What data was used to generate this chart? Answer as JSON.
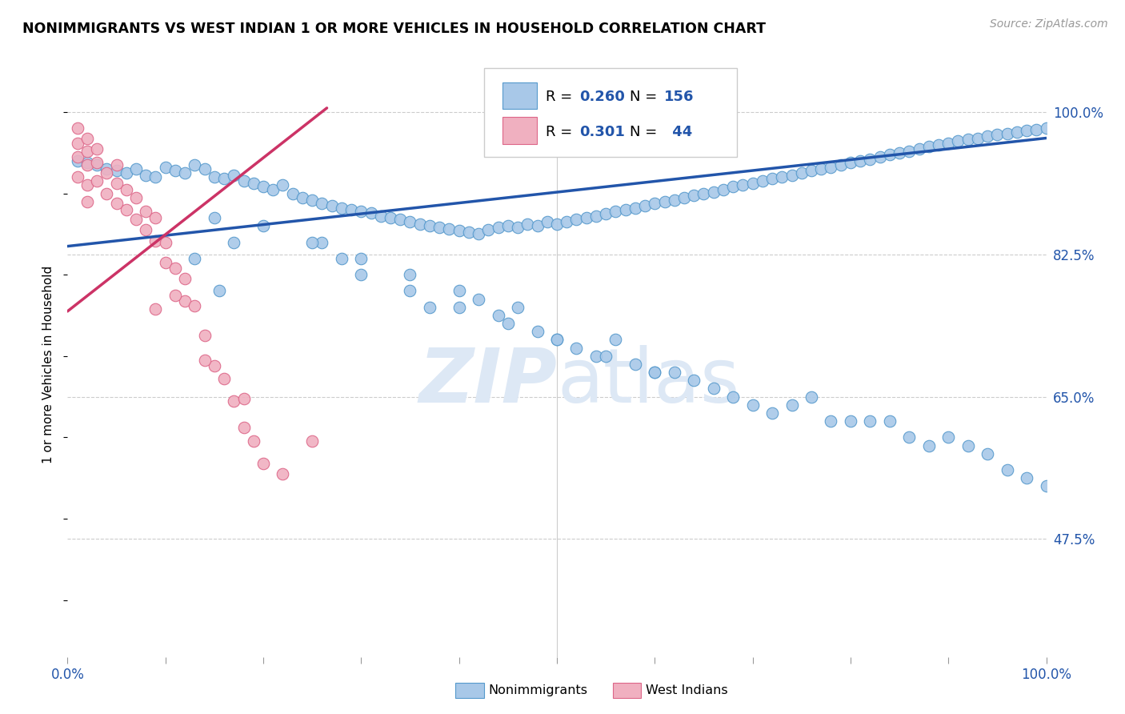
{
  "title": "NONIMMIGRANTS VS WEST INDIAN 1 OR MORE VEHICLES IN HOUSEHOLD CORRELATION CHART",
  "source": "Source: ZipAtlas.com",
  "ylabel": "1 or more Vehicles in Household",
  "ytick_labels": [
    "100.0%",
    "82.5%",
    "65.0%",
    "47.5%"
  ],
  "ytick_values": [
    1.0,
    0.825,
    0.65,
    0.475
  ],
  "xlim": [
    0.0,
    1.0
  ],
  "ylim": [
    0.33,
    1.05
  ],
  "legend_label1": "Nonimmigrants",
  "legend_label2": "West Indians",
  "blue_color": "#a8c8e8",
  "blue_edge_color": "#5599cc",
  "blue_line_color": "#2255aa",
  "pink_color": "#f0b0c0",
  "pink_edge_color": "#dd6688",
  "pink_line_color": "#cc3366",
  "watermark_color": "#dde8f5",
  "blue_line_x": [
    0.0,
    1.0
  ],
  "blue_line_y": [
    0.835,
    0.968
  ],
  "pink_line_x": [
    0.0,
    0.265
  ],
  "pink_line_y": [
    0.755,
    1.005
  ],
  "blue_scatter_x": [
    0.01,
    0.02,
    0.03,
    0.04,
    0.05,
    0.06,
    0.07,
    0.08,
    0.09,
    0.1,
    0.11,
    0.12,
    0.13,
    0.14,
    0.15,
    0.16,
    0.17,
    0.18,
    0.19,
    0.2,
    0.21,
    0.22,
    0.23,
    0.24,
    0.25,
    0.26,
    0.27,
    0.28,
    0.29,
    0.3,
    0.31,
    0.32,
    0.33,
    0.34,
    0.35,
    0.36,
    0.37,
    0.38,
    0.39,
    0.4,
    0.41,
    0.42,
    0.43,
    0.44,
    0.45,
    0.46,
    0.47,
    0.48,
    0.49,
    0.5,
    0.51,
    0.52,
    0.53,
    0.54,
    0.55,
    0.56,
    0.57,
    0.58,
    0.59,
    0.6,
    0.61,
    0.62,
    0.63,
    0.64,
    0.65,
    0.66,
    0.67,
    0.68,
    0.69,
    0.7,
    0.71,
    0.72,
    0.73,
    0.74,
    0.75,
    0.76,
    0.77,
    0.78,
    0.79,
    0.8,
    0.81,
    0.82,
    0.83,
    0.84,
    0.85,
    0.86,
    0.87,
    0.88,
    0.89,
    0.9,
    0.91,
    0.92,
    0.93,
    0.94,
    0.95,
    0.96,
    0.97,
    0.98,
    0.99,
    1.0,
    0.13,
    0.155,
    0.17,
    0.26,
    0.28,
    0.3,
    0.35,
    0.37,
    0.4,
    0.42,
    0.44,
    0.46,
    0.48,
    0.5,
    0.52,
    0.54,
    0.56,
    0.58,
    0.6,
    0.62,
    0.64,
    0.66,
    0.68,
    0.7,
    0.72,
    0.74,
    0.76,
    0.78,
    0.8,
    0.82,
    0.84,
    0.86,
    0.88,
    0.9,
    0.92,
    0.94,
    0.96,
    0.98,
    1.0,
    0.15,
    0.2,
    0.25,
    0.3,
    0.35,
    0.4,
    0.45,
    0.5,
    0.55,
    0.6
  ],
  "blue_scatter_y": [
    0.94,
    0.938,
    0.935,
    0.93,
    0.928,
    0.925,
    0.93,
    0.922,
    0.92,
    0.932,
    0.928,
    0.925,
    0.935,
    0.93,
    0.92,
    0.918,
    0.922,
    0.915,
    0.912,
    0.908,
    0.905,
    0.91,
    0.9,
    0.895,
    0.892,
    0.888,
    0.885,
    0.882,
    0.88,
    0.878,
    0.876,
    0.872,
    0.87,
    0.868,
    0.865,
    0.862,
    0.86,
    0.858,
    0.856,
    0.854,
    0.852,
    0.85,
    0.855,
    0.858,
    0.86,
    0.858,
    0.862,
    0.86,
    0.865,
    0.862,
    0.865,
    0.868,
    0.87,
    0.872,
    0.875,
    0.878,
    0.88,
    0.882,
    0.885,
    0.888,
    0.89,
    0.892,
    0.895,
    0.898,
    0.9,
    0.902,
    0.905,
    0.908,
    0.91,
    0.912,
    0.915,
    0.918,
    0.92,
    0.922,
    0.925,
    0.928,
    0.93,
    0.932,
    0.935,
    0.938,
    0.94,
    0.942,
    0.945,
    0.948,
    0.95,
    0.952,
    0.955,
    0.958,
    0.96,
    0.962,
    0.965,
    0.967,
    0.968,
    0.97,
    0.972,
    0.973,
    0.975,
    0.977,
    0.978,
    0.98,
    0.82,
    0.78,
    0.84,
    0.84,
    0.82,
    0.8,
    0.78,
    0.76,
    0.78,
    0.77,
    0.75,
    0.76,
    0.73,
    0.72,
    0.71,
    0.7,
    0.72,
    0.69,
    0.68,
    0.68,
    0.67,
    0.66,
    0.65,
    0.64,
    0.63,
    0.64,
    0.65,
    0.62,
    0.62,
    0.62,
    0.62,
    0.6,
    0.59,
    0.6,
    0.59,
    0.58,
    0.56,
    0.55,
    0.54,
    0.87,
    0.86,
    0.84,
    0.82,
    0.8,
    0.76,
    0.74,
    0.72,
    0.7,
    0.68
  ],
  "pink_scatter_x": [
    0.01,
    0.01,
    0.01,
    0.01,
    0.02,
    0.02,
    0.02,
    0.02,
    0.02,
    0.03,
    0.03,
    0.03,
    0.04,
    0.04,
    0.05,
    0.05,
    0.05,
    0.06,
    0.06,
    0.07,
    0.07,
    0.08,
    0.08,
    0.09,
    0.09,
    0.1,
    0.1,
    0.11,
    0.12,
    0.12,
    0.13,
    0.14,
    0.15,
    0.16,
    0.17,
    0.18,
    0.19,
    0.2,
    0.22,
    0.25,
    0.09,
    0.11,
    0.14,
    0.18
  ],
  "pink_scatter_y": [
    0.98,
    0.962,
    0.945,
    0.92,
    0.968,
    0.952,
    0.935,
    0.91,
    0.89,
    0.955,
    0.938,
    0.915,
    0.925,
    0.9,
    0.935,
    0.912,
    0.888,
    0.905,
    0.88,
    0.895,
    0.868,
    0.878,
    0.855,
    0.87,
    0.842,
    0.84,
    0.815,
    0.808,
    0.795,
    0.768,
    0.762,
    0.725,
    0.688,
    0.672,
    0.645,
    0.612,
    0.595,
    0.568,
    0.555,
    0.595,
    0.758,
    0.775,
    0.695,
    0.648
  ],
  "xtick_positions": [
    0.0,
    0.1,
    0.2,
    0.3,
    0.4,
    0.5,
    0.6,
    0.7,
    0.8,
    0.9,
    1.0
  ]
}
